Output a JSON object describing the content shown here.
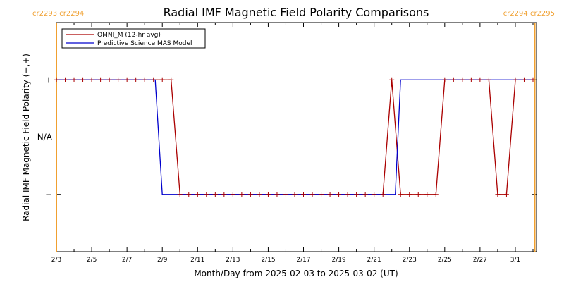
{
  "chart_data": {
    "type": "line",
    "title": "Radial IMF Magnetic Field Polarity Comparisons",
    "xlabel": "Month/Day from 2025-02-03 to 2025-03-02 (UT)",
    "ylabel": "Radial IMF Magnetic Field Polarity (−,+)",
    "xlim": [
      0,
      27.2
    ],
    "ylim": [
      -2,
      2
    ],
    "x_tick_values": [
      0,
      2,
      4,
      6,
      8,
      10,
      12,
      14,
      16,
      18,
      20,
      22,
      24,
      26
    ],
    "x_tick_labels": [
      "2/3",
      "2/5",
      "2/7",
      "2/9",
      "2/11",
      "2/13",
      "2/15",
      "2/17",
      "2/19",
      "2/21",
      "2/23",
      "2/25",
      "2/27",
      "3/1"
    ],
    "y_ticks": [
      {
        "value": 1,
        "label": "+"
      },
      {
        "value": 0,
        "label": "N/A"
      },
      {
        "value": -1,
        "label": "−"
      }
    ],
    "carrington_markers": [
      {
        "x": 0,
        "label": "cr2293 cr2294",
        "position": "left"
      },
      {
        "x": 27.1,
        "label": "cr2294 cr2295",
        "position": "right"
      }
    ],
    "marker_color": "#f0a030",
    "legend_position": "top-left",
    "series": [
      {
        "name": "OMNI_M (12-hr avg)",
        "color": "#aa0000",
        "markers": true,
        "x": [
          0,
          0.5,
          1,
          1.5,
          2,
          2.5,
          3,
          3.5,
          4,
          4.5,
          5,
          5.5,
          6,
          6.5,
          7,
          7.5,
          8,
          8.5,
          9,
          9.5,
          10,
          10.5,
          11,
          11.5,
          12,
          12.5,
          13,
          13.5,
          14,
          14.5,
          15,
          15.5,
          16,
          16.5,
          17,
          17.5,
          18,
          18.5,
          19,
          19.5,
          20,
          20.5,
          21,
          21.5,
          22,
          22.5,
          23,
          23.5,
          24,
          24.5,
          25,
          25.5,
          26,
          26.5,
          27
        ],
        "y": [
          1,
          1,
          1,
          1,
          1,
          1,
          1,
          1,
          1,
          1,
          1,
          1,
          1,
          1,
          -1,
          -1,
          -1,
          -1,
          -1,
          -1,
          -1,
          -1,
          -1,
          -1,
          -1,
          -1,
          -1,
          -1,
          -1,
          -1,
          -1,
          -1,
          -1,
          -1,
          -1,
          -1,
          -1,
          -1,
          1,
          -1,
          -1,
          -1,
          -1,
          -1,
          1,
          1,
          1,
          1,
          1,
          1,
          -1,
          -1,
          1,
          1,
          1
        ]
      },
      {
        "name": "Predictive Science MAS Model",
        "color": "#0000cc",
        "markers": false,
        "x": [
          0,
          5.6,
          6.0,
          18.5,
          19.2,
          19.5,
          27.0
        ],
        "y": [
          1,
          1,
          -1,
          -1,
          -1,
          1,
          1
        ]
      }
    ]
  }
}
